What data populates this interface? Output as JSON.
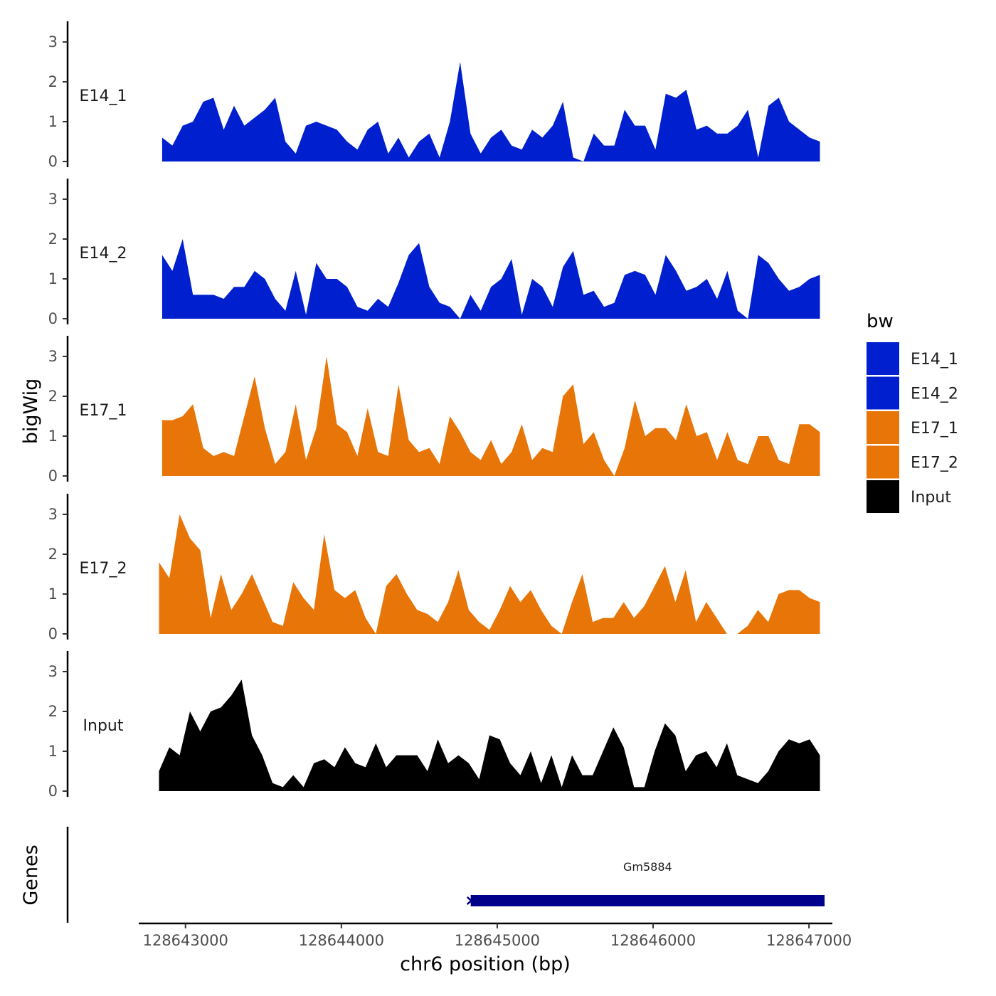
{
  "chart_data": {
    "type": "area",
    "ylabel": "bigWig",
    "xlabel": "chr6 position (bp)",
    "genes_label": "Genes",
    "ylim": [
      0,
      3.5
    ],
    "y_ticks": [
      "0",
      "1",
      "2",
      "3"
    ],
    "xlim": [
      128642700,
      128647150
    ],
    "x_ticks": [
      {
        "value": 128643000,
        "label": "128643000"
      },
      {
        "value": 128644000,
        "label": "128644000"
      },
      {
        "value": 128645000,
        "label": "128645000"
      },
      {
        "value": 128646000,
        "label": "128646000"
      },
      {
        "value": 128647000,
        "label": "128647000"
      }
    ],
    "legend": {
      "title": "bw",
      "entries": [
        {
          "label": "E14_1",
          "color": "#0020CF"
        },
        {
          "label": "E14_2",
          "color": "#0020CF"
        },
        {
          "label": "E17_1",
          "color": "#E87508"
        },
        {
          "label": "E17_2",
          "color": "#E87508"
        },
        {
          "label": "Input",
          "color": "#000000"
        }
      ]
    },
    "series": [
      {
        "name": "E14_1",
        "color": "#0020CF",
        "x_start": 128642850,
        "x_end": 128647070,
        "values": [
          0.6,
          0.4,
          0.9,
          1.0,
          1.5,
          1.6,
          0.8,
          1.4,
          0.9,
          1.1,
          1.3,
          1.6,
          0.5,
          0.2,
          0.9,
          1.0,
          0.9,
          0.8,
          0.5,
          0.3,
          0.8,
          1.0,
          0.2,
          0.6,
          0.1,
          0.5,
          0.7,
          0.1,
          1.0,
          2.5,
          0.7,
          0.2,
          0.6,
          0.8,
          0.4,
          0.3,
          0.8,
          0.6,
          0.9,
          1.5,
          0.1,
          0.0,
          0.7,
          0.4,
          0.4,
          1.3,
          0.9,
          0.9,
          0.3,
          1.7,
          1.6,
          1.8,
          0.8,
          0.9,
          0.7,
          0.7,
          0.9,
          1.3,
          0.1,
          1.4,
          1.6,
          1.0,
          0.8,
          0.6,
          0.5
        ]
      },
      {
        "name": "E14_2",
        "color": "#0020CF",
        "x_start": 128642850,
        "x_end": 128647070,
        "values": [
          1.6,
          1.2,
          2.0,
          0.6,
          0.6,
          0.6,
          0.5,
          0.8,
          0.8,
          1.2,
          1.0,
          0.5,
          0.2,
          1.2,
          0.1,
          1.4,
          1.0,
          1.0,
          0.8,
          0.3,
          0.2,
          0.5,
          0.3,
          0.9,
          1.6,
          1.9,
          0.8,
          0.4,
          0.3,
          0.0,
          0.6,
          0.2,
          0.8,
          1.0,
          1.5,
          0.1,
          1.0,
          0.8,
          0.3,
          1.3,
          1.7,
          0.6,
          0.7,
          0.3,
          0.4,
          1.1,
          1.2,
          1.1,
          0.6,
          1.6,
          1.2,
          0.7,
          0.8,
          1.0,
          0.5,
          1.2,
          0.2,
          0.0,
          1.6,
          1.4,
          1.0,
          0.7,
          0.8,
          1.0,
          1.1
        ]
      },
      {
        "name": "E17_1",
        "color": "#E87508",
        "x_start": 128642850,
        "x_end": 128647070,
        "values": [
          1.4,
          1.4,
          1.5,
          1.8,
          0.7,
          0.5,
          0.6,
          0.5,
          1.5,
          2.5,
          1.2,
          0.3,
          0.6,
          1.8,
          0.4,
          1.2,
          3.0,
          1.3,
          1.1,
          0.5,
          1.7,
          0.6,
          0.5,
          2.3,
          0.9,
          0.6,
          0.7,
          0.3,
          1.5,
          1.1,
          0.6,
          0.4,
          0.9,
          0.3,
          0.6,
          1.3,
          0.4,
          0.7,
          0.6,
          2.0,
          2.3,
          0.8,
          1.1,
          0.4,
          0.0,
          0.7,
          1.9,
          1.0,
          1.2,
          1.2,
          0.9,
          1.8,
          1.0,
          1.1,
          0.4,
          1.1,
          0.4,
          0.3,
          1.0,
          1.0,
          0.4,
          0.3,
          1.3,
          1.3,
          1.1
        ]
      },
      {
        "name": "E17_2",
        "color": "#E87508",
        "x_start": 128642830,
        "x_end": 128647070,
        "values": [
          1.8,
          1.4,
          3.0,
          2.4,
          2.1,
          0.4,
          1.5,
          0.6,
          1.0,
          1.5,
          0.9,
          0.3,
          0.2,
          1.3,
          0.9,
          0.6,
          2.5,
          1.1,
          0.9,
          1.1,
          0.4,
          0.0,
          1.2,
          1.5,
          1.0,
          0.6,
          0.5,
          0.3,
          0.8,
          1.6,
          0.6,
          0.3,
          0.1,
          0.6,
          1.2,
          0.8,
          1.1,
          0.6,
          0.2,
          0.0,
          0.8,
          1.5,
          0.3,
          0.4,
          0.4,
          0.8,
          0.4,
          0.7,
          1.2,
          1.7,
          0.8,
          1.6,
          0.3,
          0.8,
          0.4,
          0.0,
          0.0,
          0.2,
          0.6,
          0.3,
          1.0,
          1.1,
          1.1,
          0.9,
          0.8
        ]
      },
      {
        "name": "Input",
        "color": "#000000",
        "x_start": 128642830,
        "x_end": 128647070,
        "values": [
          0.5,
          1.1,
          0.9,
          2.0,
          1.5,
          2.0,
          2.1,
          2.4,
          2.8,
          1.4,
          0.9,
          0.2,
          0.1,
          0.4,
          0.1,
          0.7,
          0.8,
          0.6,
          1.1,
          0.7,
          0.6,
          1.2,
          0.6,
          0.9,
          0.9,
          0.9,
          0.5,
          1.3,
          0.7,
          0.9,
          0.7,
          0.3,
          1.4,
          1.3,
          0.7,
          0.4,
          1.0,
          0.2,
          0.9,
          0.1,
          0.9,
          0.4,
          0.4,
          1.0,
          1.6,
          1.1,
          0.1,
          0.1,
          1.0,
          1.7,
          1.4,
          0.5,
          0.9,
          1.0,
          0.6,
          1.2,
          0.4,
          0.3,
          0.2,
          0.5,
          1.0,
          1.3,
          1.2,
          1.3,
          0.9
        ]
      }
    ],
    "genes": [
      {
        "name": "Gm5884",
        "start": 128644830,
        "end": 128647100,
        "color": "#00008B"
      }
    ]
  }
}
